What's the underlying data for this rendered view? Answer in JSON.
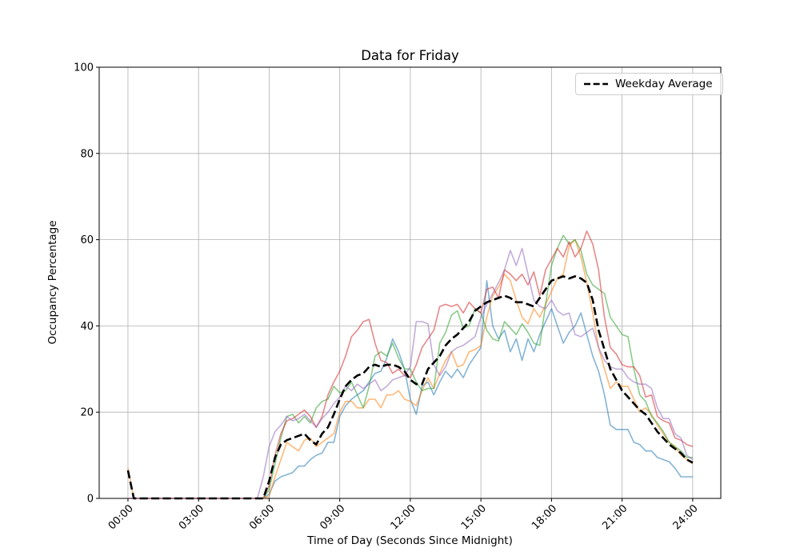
{
  "figure": {
    "title": "Data for Friday",
    "background": "#ffffff"
  },
  "chart_data": {
    "type": "line",
    "title": "Data for Friday",
    "xlabel": "Time of Day (Seconds Since Midnight)",
    "ylabel": "Occupancy Percentage",
    "grid": true,
    "grid_color": "#b0b0b0",
    "legend_position": "upper right",
    "xlim": [
      -4400,
      90700
    ],
    "ylim": [
      0,
      100
    ],
    "x_ticks": {
      "values": [
        0,
        10800,
        21600,
        32400,
        43200,
        54000,
        64800,
        75600,
        86400
      ],
      "labels": [
        "00:00",
        "03:00",
        "06:00",
        "09:00",
        "12:00",
        "15:00",
        "18:00",
        "21:00",
        "24:00"
      ]
    },
    "y_ticks": {
      "values": [
        0,
        20,
        40,
        60,
        80,
        100
      ],
      "labels": [
        "0",
        "20",
        "40",
        "60",
        "80",
        "100"
      ]
    },
    "x_start": 0,
    "x_step": 900,
    "series": [
      {
        "id": "blue",
        "name": "",
        "color": "#1f77b4",
        "opacity": 0.55,
        "width": 1.6,
        "dash": null,
        "values": [
          0,
          0,
          0,
          0,
          0,
          0,
          0,
          0,
          0,
          0,
          0,
          0,
          0,
          0,
          0,
          0,
          0,
          0,
          0,
          0,
          0,
          0,
          0,
          0,
          1,
          4,
          5,
          5.5,
          6,
          7.5,
          7.5,
          9,
          10,
          10.5,
          13,
          13,
          19,
          21.5,
          23,
          24,
          25,
          27,
          29,
          29.5,
          32.5,
          37,
          34,
          30,
          23,
          19.5,
          26,
          27,
          24,
          27,
          29.5,
          28,
          30,
          28,
          31,
          33,
          35,
          50.5,
          40,
          37,
          39,
          34,
          37,
          32,
          37,
          34,
          38,
          41,
          44,
          40,
          36,
          38.5,
          40,
          43,
          38,
          33,
          29.5,
          24,
          17,
          16,
          16,
          16,
          13,
          12.5,
          11,
          11,
          9.5,
          9,
          8.5,
          7,
          5,
          5,
          5
        ]
      },
      {
        "id": "orange",
        "name": "",
        "color": "#ff7f0e",
        "opacity": 0.55,
        "width": 1.6,
        "dash": null,
        "values": [
          7,
          0,
          0,
          0,
          0,
          0,
          0,
          0,
          0,
          0,
          0,
          0,
          0,
          0,
          0,
          0,
          0,
          0,
          0,
          0,
          0,
          0,
          0,
          0,
          0.5,
          5,
          9,
          13,
          12,
          11,
          13.5,
          14,
          12,
          13,
          14,
          15,
          20,
          22.5,
          22.5,
          21,
          21,
          23,
          23,
          21,
          24,
          24,
          25,
          23,
          22.5,
          21.5,
          25,
          28,
          25.5,
          29,
          32,
          34,
          30.5,
          31,
          34,
          34.5,
          35.5,
          42,
          47,
          49,
          52,
          50.5,
          46,
          42,
          40.5,
          44,
          42,
          45,
          48,
          51,
          52,
          58.5,
          60,
          56,
          50,
          43,
          35,
          30,
          25.5,
          27,
          26,
          26,
          23,
          20,
          21,
          19.5,
          17,
          15,
          13,
          12,
          10,
          9,
          8
        ]
      },
      {
        "id": "green",
        "name": "",
        "color": "#2ca02c",
        "opacity": 0.55,
        "width": 1.6,
        "dash": null,
        "values": [
          0,
          0,
          0,
          0,
          0,
          0,
          0,
          0,
          0,
          0,
          0,
          0,
          0,
          0,
          0,
          0,
          0,
          0,
          0,
          0,
          0,
          0,
          0,
          0,
          2,
          8,
          14,
          19,
          19.5,
          17.5,
          19,
          17.5,
          21,
          22.5,
          23,
          26,
          24.5,
          25,
          27,
          24,
          21,
          26,
          33,
          34,
          33,
          36,
          32.5,
          30,
          30,
          27,
          25,
          25.5,
          25.5,
          36,
          38.5,
          42.5,
          43.5,
          39.5,
          40,
          44,
          43,
          39,
          37,
          36.5,
          41,
          39.5,
          38,
          40.5,
          38.5,
          36,
          35.5,
          45,
          54,
          58,
          61,
          59,
          60,
          57.5,
          52,
          49.5,
          48.5,
          47.5,
          42,
          40,
          38,
          37.5,
          30,
          24,
          22.5,
          19,
          17.5,
          15.5,
          13,
          12,
          11,
          9.5,
          9.5
        ]
      },
      {
        "id": "red",
        "name": "",
        "color": "#d62728",
        "opacity": 0.55,
        "width": 1.6,
        "dash": null,
        "values": [
          0,
          0,
          0,
          0,
          0,
          0,
          0,
          0,
          0,
          0,
          0,
          0,
          0,
          0,
          0,
          0,
          0,
          0,
          0,
          0,
          0,
          0,
          0,
          0,
          3,
          10,
          15,
          18,
          18.5,
          19.5,
          20.5,
          19,
          16.5,
          19,
          24,
          27,
          29.5,
          33,
          37.5,
          39,
          41,
          41.5,
          36,
          32,
          31.5,
          29,
          30,
          28.5,
          28,
          31,
          35,
          37,
          39,
          44.5,
          45,
          44.5,
          45,
          43,
          45.5,
          44,
          43,
          48.5,
          49,
          46.5,
          53,
          52,
          50.5,
          52,
          49.5,
          52.5,
          47,
          53,
          55.5,
          58,
          56,
          59.5,
          56,
          58,
          62,
          59,
          53,
          42,
          35,
          33.5,
          31,
          30.5,
          30.5,
          28.5,
          23.5,
          24,
          19,
          18,
          17.5,
          14,
          13.5,
          12.5,
          12
        ]
      },
      {
        "id": "purple",
        "name": "",
        "color": "#9467bd",
        "opacity": 0.55,
        "width": 1.6,
        "dash": null,
        "values": [
          0,
          0,
          0,
          0,
          0,
          0,
          0,
          0,
          0,
          0,
          0,
          0,
          0,
          0,
          0,
          0,
          0,
          0,
          0,
          0,
          0,
          0,
          0,
          5,
          12,
          15.5,
          17,
          19,
          18,
          18.5,
          19.5,
          18,
          16.5,
          18.5,
          20,
          22,
          23.5,
          26,
          25,
          26.5,
          25.5,
          26.5,
          27.5,
          25,
          26,
          27.5,
          28,
          28.5,
          30.5,
          41,
          41,
          40.5,
          31,
          28.5,
          30.5,
          34,
          35,
          35.5,
          36.5,
          37.5,
          42,
          45,
          47.5,
          50,
          53,
          57.5,
          54,
          58,
          52,
          46,
          44.5,
          44,
          46,
          43.5,
          42.5,
          43,
          38,
          37.5,
          38.5,
          39.5,
          35,
          32,
          30.5,
          30,
          30,
          28,
          27,
          26.5,
          26.5,
          25.5,
          21,
          18.5,
          18.5,
          15,
          14,
          10,
          9
        ]
      },
      {
        "id": "average",
        "name": "Weekday Average",
        "color": "#000000",
        "opacity": 1,
        "width": 2.6,
        "dash": "10 4.4",
        "values": [
          6.5,
          0,
          0,
          0,
          0,
          0,
          0,
          0,
          0,
          0,
          0,
          0,
          0,
          0,
          0,
          0,
          0,
          0,
          0,
          0,
          0,
          0,
          0,
          0,
          4,
          9.5,
          12.5,
          13.5,
          14,
          14.5,
          15,
          13.5,
          12.5,
          15,
          16.5,
          19.5,
          23,
          26,
          27.5,
          28.5,
          29,
          30.5,
          31,
          30.5,
          31,
          31,
          30.5,
          29.5,
          27.5,
          26.5,
          26.5,
          30,
          31.5,
          33,
          35.5,
          37,
          38,
          39.5,
          41,
          43.5,
          44.5,
          45.5,
          46,
          46.5,
          47,
          46.5,
          45.5,
          45.5,
          45,
          44.5,
          46.5,
          48.5,
          50.5,
          51,
          51.5,
          51,
          51.5,
          51,
          50,
          46,
          39,
          34.5,
          30,
          27.5,
          25,
          23.5,
          22,
          20.5,
          19.5,
          17.5,
          15.5,
          14,
          12.5,
          11.5,
          10.5,
          9,
          8.3
        ]
      }
    ]
  },
  "legend": {
    "entry_label": "Weekday Average",
    "line_style": "dashed",
    "line_color": "#000000"
  }
}
